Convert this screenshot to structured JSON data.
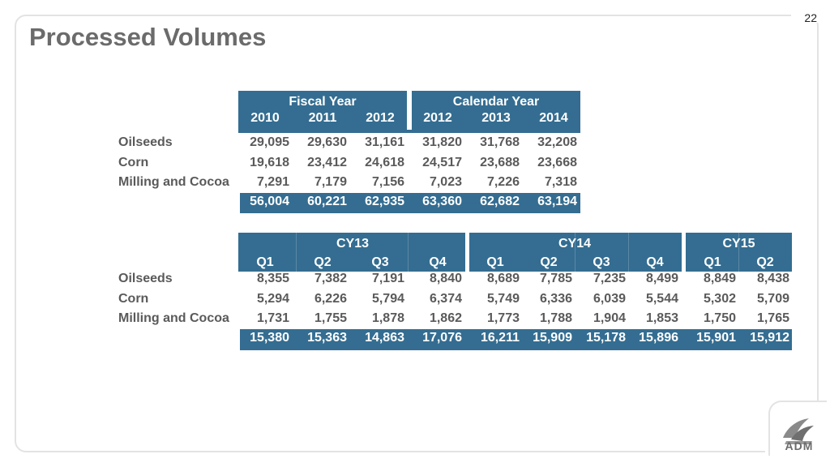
{
  "page_number": "22",
  "title": "Processed Volumes",
  "row_labels": [
    "Oilseeds",
    "Corn",
    "Milling and Cocoa"
  ],
  "annual": {
    "groups": [
      "Fiscal Year",
      "Calendar Year"
    ],
    "years": [
      "2010",
      "2011",
      "2012",
      "2012",
      "2013",
      "2014"
    ],
    "rows": [
      [
        "29,095",
        "29,630",
        "31,161",
        "31,820",
        "31,768",
        "32,208"
      ],
      [
        "19,618",
        "23,412",
        "24,618",
        "24,517",
        "23,688",
        "23,668"
      ],
      [
        "7,291",
        "7,179",
        "7,156",
        "7,023",
        "7,226",
        "7,318"
      ]
    ],
    "totals": [
      "56,004",
      "60,221",
      "62,935",
      "63,360",
      "62,682",
      "63,194"
    ]
  },
  "quarterly": {
    "groups": [
      "CY13",
      "CY14",
      "CY15"
    ],
    "quarters": [
      "Q1",
      "Q2",
      "Q3",
      "Q4",
      "Q1",
      "Q2",
      "Q3",
      "Q4",
      "Q1",
      "Q2"
    ],
    "rows": [
      [
        "8,355",
        "7,382",
        "7,191",
        "8,840",
        "8,689",
        "7,785",
        "7,235",
        "8,499",
        "8,849",
        "8,438"
      ],
      [
        "5,294",
        "6,226",
        "5,794",
        "6,374",
        "5,749",
        "6,336",
        "6,039",
        "5,544",
        "5,302",
        "5,709"
      ],
      [
        "1,731",
        "1,755",
        "1,878",
        "1,862",
        "1,773",
        "1,788",
        "1,904",
        "1,853",
        "1,750",
        "1,765"
      ]
    ],
    "totals": [
      "15,380",
      "15,363",
      "14,863",
      "17,076",
      "16,211",
      "15,909",
      "15,178",
      "15,896",
      "15,901",
      "15,912"
    ]
  },
  "logo_text": "ADM",
  "colors": {
    "header_blue": "#346d91",
    "title_gray": "#6b6b6b",
    "text_gray": "#5a5a5a"
  }
}
